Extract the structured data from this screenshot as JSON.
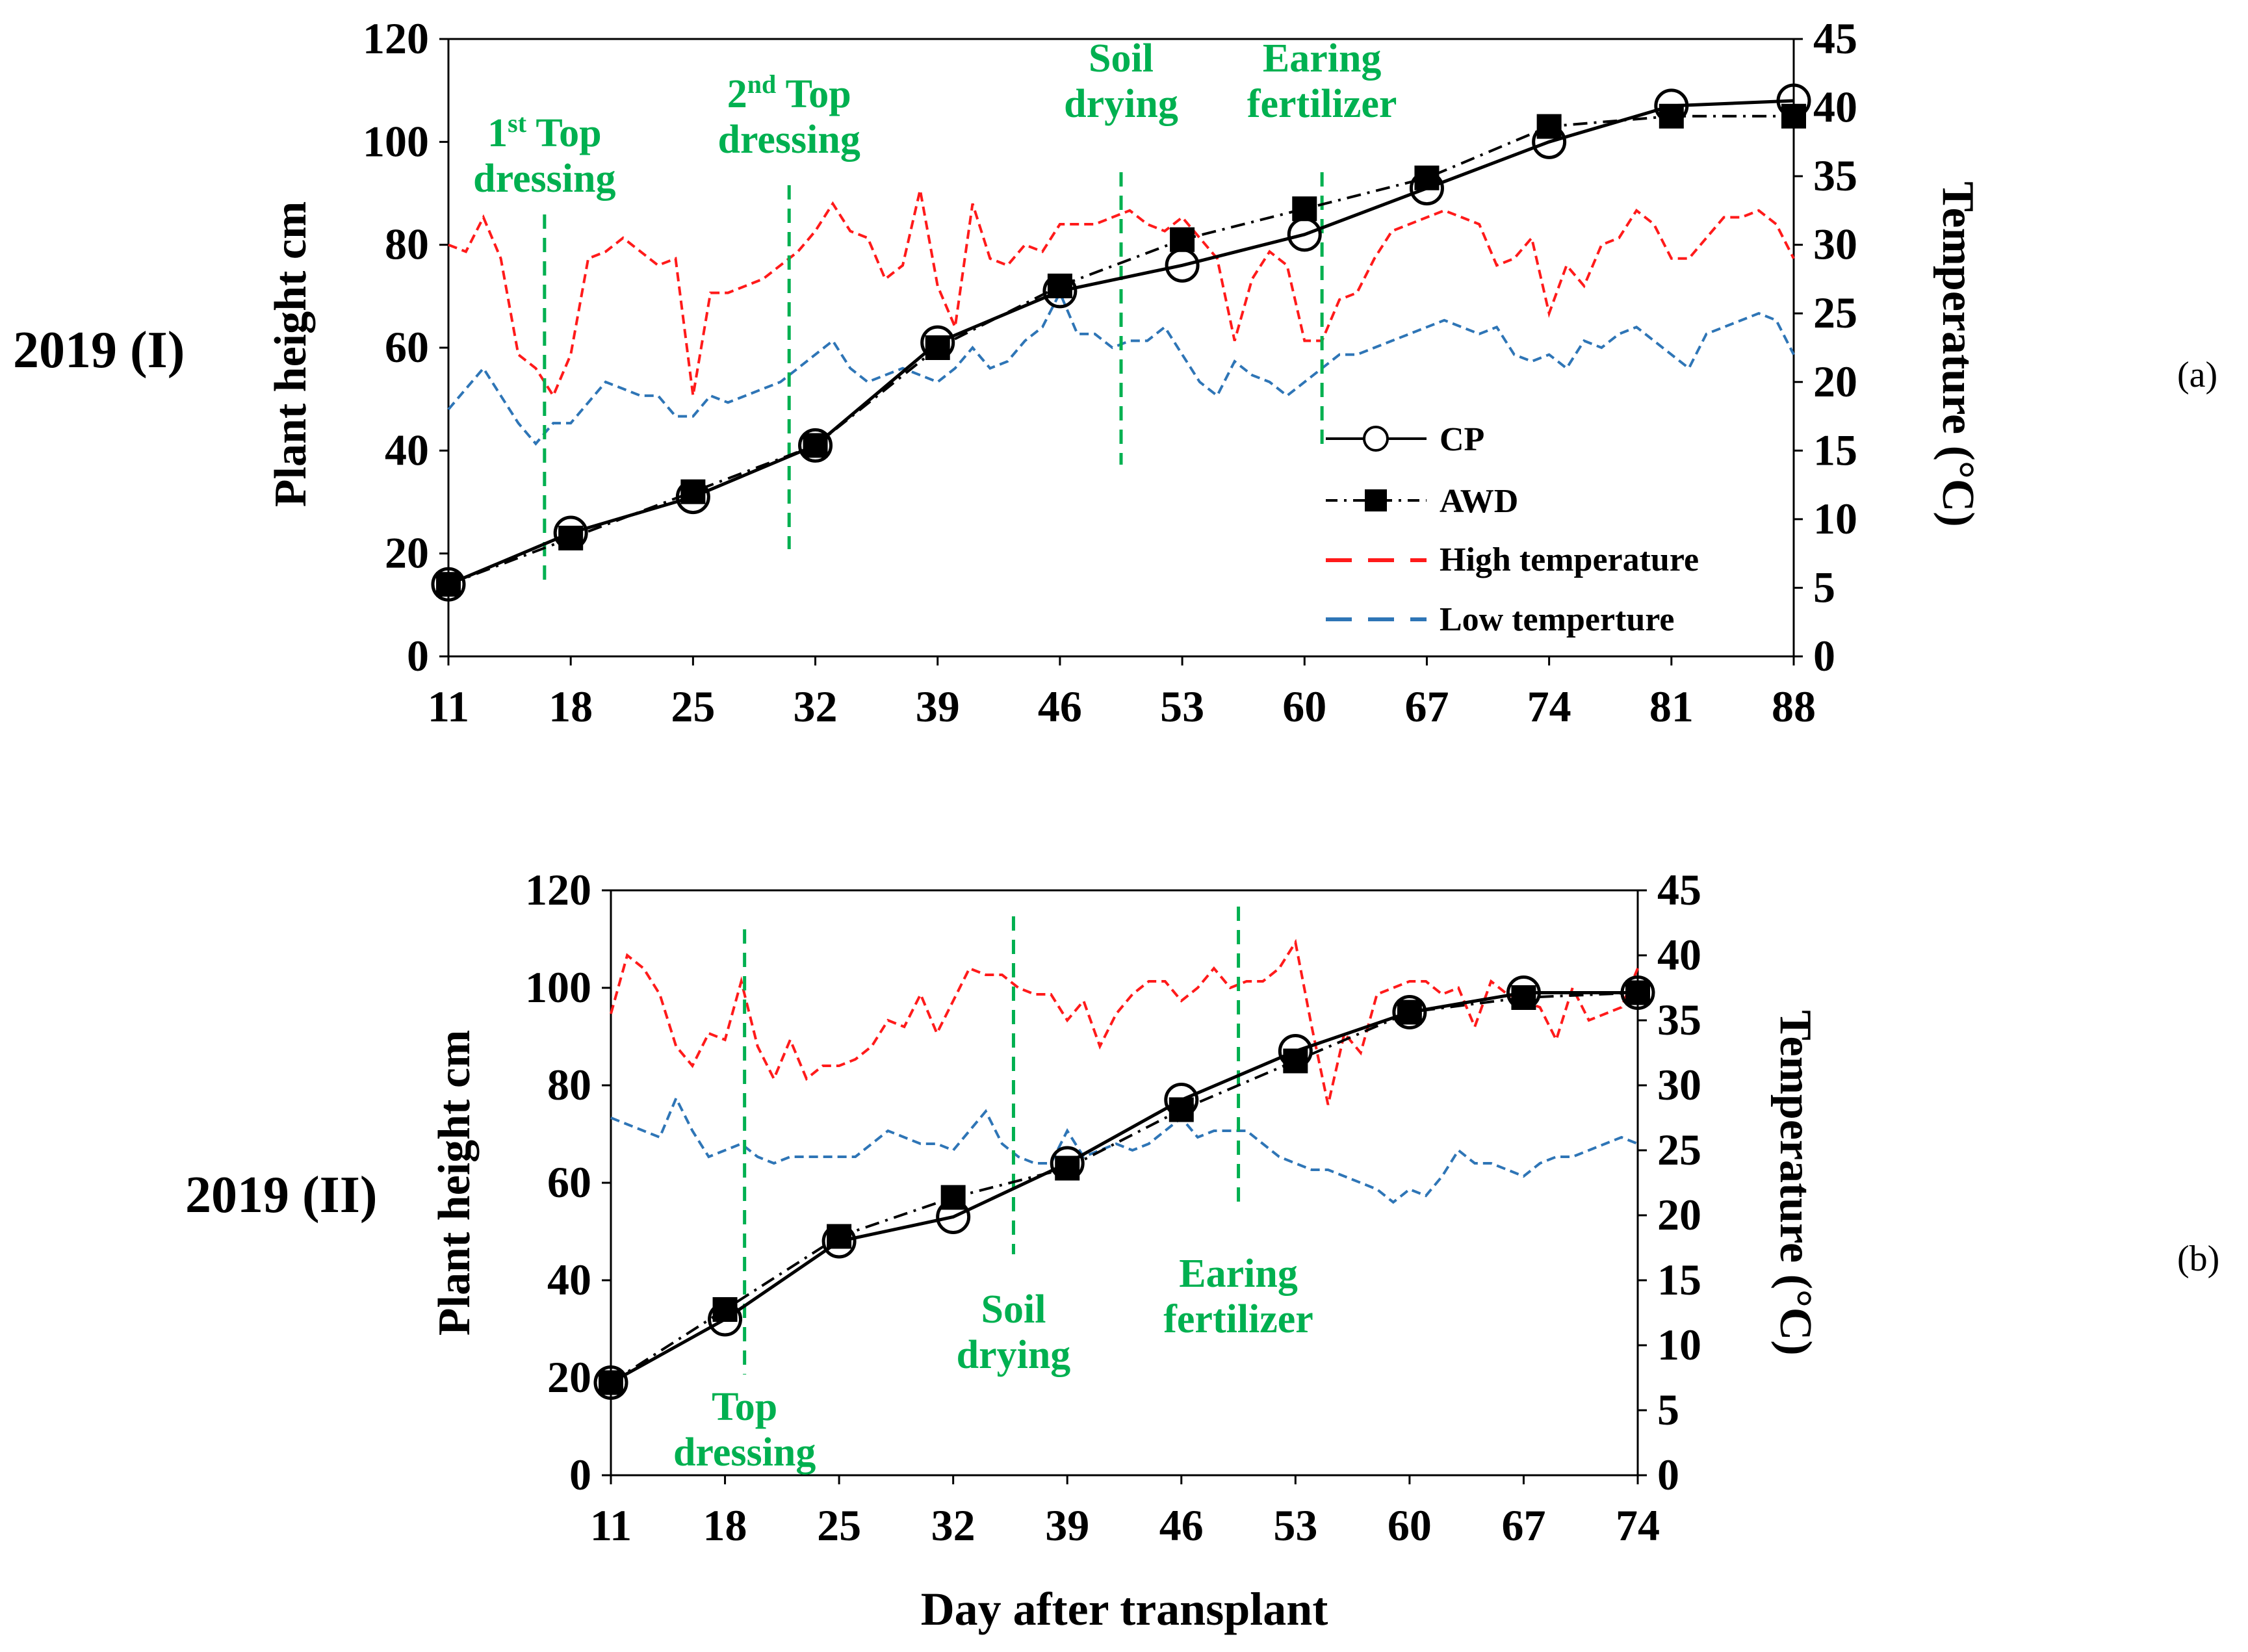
{
  "colors": {
    "high_temp": "#FF1A1A",
    "low_temp": "#2E75B6",
    "annotation": "#00B050",
    "series": "#000000"
  },
  "figure": {
    "x_axis_label": "Day after transplant"
  },
  "chart_data": [
    {
      "type": "line",
      "panel": "(a)",
      "row_label": "2019 (I)",
      "ylabel": "Plant height cm",
      "y2label": "Temperature (°C)",
      "xlim": [
        11,
        88
      ],
      "ylim": [
        0,
        120
      ],
      "y2lim": [
        0,
        45
      ],
      "x_ticks": [
        11,
        18,
        25,
        32,
        39,
        46,
        53,
        60,
        67,
        74,
        81,
        88
      ],
      "y_ticks": [
        0,
        20,
        40,
        60,
        80,
        100,
        120
      ],
      "y2_ticks": [
        0,
        5,
        10,
        15,
        20,
        25,
        30,
        35,
        40,
        45
      ],
      "legend": [
        "CP",
        "AWD",
        "High temperature",
        "Low temperture"
      ],
      "series": [
        {
          "name": "CP",
          "axis": "left",
          "style": "solid-open-circle",
          "x": [
            11,
            18,
            25,
            32,
            39,
            46,
            53,
            60,
            67,
            74,
            81,
            88
          ],
          "values": [
            14,
            24,
            31,
            41,
            61,
            71,
            76,
            82,
            91,
            100,
            107,
            108
          ]
        },
        {
          "name": "AWD",
          "axis": "left",
          "style": "dashdot-filled-square",
          "x": [
            11,
            18,
            25,
            32,
            39,
            46,
            53,
            60,
            67,
            74,
            81,
            88
          ],
          "values": [
            14,
            23,
            32,
            41,
            60,
            72,
            81,
            87,
            93,
            103,
            105,
            105
          ]
        },
        {
          "name": "High temperature",
          "axis": "right",
          "style": "dashed",
          "x": [
            11,
            12,
            13,
            14,
            15,
            16,
            17,
            18,
            19,
            20,
            21,
            22,
            23,
            24,
            25,
            26,
            27,
            28,
            29,
            30,
            31,
            32,
            33,
            34,
            35,
            36,
            37,
            38,
            39,
            40,
            41,
            42,
            43,
            44,
            45,
            46,
            47,
            48,
            49,
            50,
            51,
            52,
            53,
            54,
            55,
            56,
            57,
            58,
            59,
            60,
            61,
            62,
            63,
            64,
            65,
            66,
            67,
            68,
            69,
            70,
            71,
            72,
            73,
            74,
            75,
            76,
            77,
            78,
            79,
            80,
            81,
            82,
            83,
            84,
            85,
            86,
            87,
            88
          ],
          "values": [
            30,
            29.5,
            32,
            29,
            22,
            21,
            19,
            22,
            29,
            29.5,
            30.5,
            29.5,
            28.5,
            29,
            19,
            26.5,
            26.5,
            27,
            27.5,
            28.5,
            29.5,
            31,
            33,
            31,
            30.5,
            27.5,
            28.5,
            34,
            27,
            24,
            33,
            29,
            28.5,
            30,
            29.5,
            31.5,
            31.5,
            31.5,
            32,
            32.5,
            31.5,
            31,
            32,
            30.5,
            29,
            23,
            27.5,
            29.5,
            28.5,
            23,
            23,
            26,
            26.5,
            29,
            31,
            31.5,
            32,
            32.5,
            32,
            31.5,
            28.5,
            29,
            30.5,
            25,
            28.5,
            27,
            30,
            30.5,
            32.5,
            31.5,
            29,
            29,
            30.5,
            32,
            32,
            32.5,
            31.5,
            29
          ]
        },
        {
          "name": "Low temperture",
          "axis": "right",
          "style": "dashed",
          "x": [
            11,
            12,
            13,
            14,
            15,
            16,
            17,
            18,
            19,
            20,
            21,
            22,
            23,
            24,
            25,
            26,
            27,
            28,
            29,
            30,
            31,
            32,
            33,
            34,
            35,
            36,
            37,
            38,
            39,
            40,
            41,
            42,
            43,
            44,
            45,
            46,
            47,
            48,
            49,
            50,
            51,
            52,
            53,
            54,
            55,
            56,
            57,
            58,
            59,
            60,
            61,
            62,
            63,
            64,
            65,
            66,
            67,
            68,
            69,
            70,
            71,
            72,
            73,
            74,
            75,
            76,
            77,
            78,
            79,
            80,
            81,
            82,
            83,
            84,
            85,
            86,
            87,
            88
          ],
          "values": [
            18,
            19.5,
            21,
            19,
            17,
            15.5,
            17,
            17,
            18.5,
            20,
            19.5,
            19,
            19,
            17.5,
            17.5,
            19,
            18.5,
            19,
            19.5,
            20,
            21,
            22,
            23,
            21,
            20,
            20.5,
            21,
            20.5,
            20,
            21,
            22.5,
            21,
            21.5,
            23,
            24,
            26.5,
            23.5,
            23.5,
            22.5,
            23,
            23,
            24,
            22,
            20,
            19,
            21.5,
            20.5,
            20,
            19,
            20,
            21,
            22,
            22,
            22.5,
            23,
            23.5,
            24,
            24.5,
            24,
            23.5,
            24,
            22,
            21.5,
            22,
            21,
            23,
            22.5,
            23.5,
            24,
            23,
            22,
            21,
            23.5,
            24,
            24.5,
            25,
            24.5,
            22
          ]
        }
      ],
      "annotations": [
        {
          "line1": "1",
          "sup": "st",
          "line1b": " Top",
          "line2": "dressing",
          "x": 16.5
        },
        {
          "line1": "2",
          "sup": "nd",
          "line1b": " Top",
          "line2": "dressing",
          "x": 30.5
        },
        {
          "line1": "Soil",
          "sup": "",
          "line1b": "",
          "line2": "drying",
          "x": 49.5
        },
        {
          "line1": "Earing",
          "sup": "",
          "line1b": "",
          "line2": "fertilizer",
          "x": 61
        }
      ]
    },
    {
      "type": "line",
      "panel": "(b)",
      "row_label": "2019 (II)",
      "ylabel": "Plant height cm",
      "y2label": "Temperature (°C)",
      "xlim": [
        11,
        74
      ],
      "ylim": [
        0,
        120
      ],
      "y2lim": [
        0,
        45
      ],
      "x_ticks": [
        11,
        18,
        25,
        32,
        39,
        46,
        53,
        60,
        67,
        74
      ],
      "y_ticks": [
        0,
        20,
        40,
        60,
        80,
        100,
        120
      ],
      "y2_ticks": [
        0,
        5,
        10,
        15,
        20,
        25,
        30,
        35,
        40,
        45
      ],
      "series": [
        {
          "name": "CP",
          "axis": "left",
          "style": "solid-open-circle",
          "x": [
            11,
            18,
            25,
            32,
            39,
            46,
            53,
            60,
            67,
            74
          ],
          "values": [
            19,
            32,
            48,
            53,
            64,
            77,
            87,
            95,
            99,
            99
          ]
        },
        {
          "name": "AWD",
          "axis": "left",
          "style": "dashdot-filled-square",
          "x": [
            11,
            18,
            25,
            32,
            39,
            46,
            53,
            60,
            67,
            74
          ],
          "values": [
            19,
            34,
            49,
            57,
            63,
            75,
            85,
            95,
            98,
            99
          ]
        },
        {
          "name": "High temperature",
          "axis": "right",
          "style": "dashed",
          "x": [
            11,
            12,
            13,
            14,
            15,
            16,
            17,
            18,
            19,
            20,
            21,
            22,
            23,
            24,
            25,
            26,
            27,
            28,
            29,
            30,
            31,
            32,
            33,
            34,
            35,
            36,
            37,
            38,
            39,
            40,
            41,
            42,
            43,
            44,
            45,
            46,
            47,
            48,
            49,
            50,
            51,
            52,
            53,
            54,
            55,
            56,
            57,
            58,
            59,
            60,
            61,
            62,
            63,
            64,
            65,
            66,
            67,
            68,
            69,
            70,
            71,
            72,
            73,
            74
          ],
          "values": [
            35.5,
            40,
            39,
            37,
            33,
            31.5,
            34,
            33.5,
            38,
            33,
            30.5,
            33.5,
            30.5,
            31.5,
            31.5,
            32,
            33,
            35,
            34.5,
            37,
            34,
            36.5,
            39,
            38.5,
            38.5,
            37.5,
            37,
            37,
            35,
            36.5,
            33,
            35.5,
            37,
            38,
            38,
            36.5,
            37.5,
            39,
            37.5,
            38,
            38,
            39,
            41,
            34.5,
            28.5,
            34,
            32.5,
            37,
            37.5,
            38,
            38,
            37,
            37.5,
            34.5,
            38,
            37,
            36.5,
            36,
            33.5,
            37.5,
            35,
            35.5,
            36,
            39
          ]
        },
        {
          "name": "Low temperture",
          "axis": "right",
          "style": "dashed",
          "x": [
            11,
            12,
            13,
            14,
            15,
            16,
            17,
            18,
            19,
            20,
            21,
            22,
            23,
            24,
            25,
            26,
            27,
            28,
            29,
            30,
            31,
            32,
            33,
            34,
            35,
            36,
            37,
            38,
            39,
            40,
            41,
            42,
            43,
            44,
            45,
            46,
            47,
            48,
            49,
            50,
            51,
            52,
            53,
            54,
            55,
            56,
            57,
            58,
            59,
            60,
            61,
            62,
            63,
            64,
            65,
            66,
            67,
            68,
            69,
            70,
            71,
            72,
            73,
            74
          ],
          "values": [
            27.5,
            27,
            26.5,
            26,
            29,
            26.5,
            24.5,
            25,
            25.5,
            24.5,
            24,
            24.5,
            24.5,
            24.5,
            24.5,
            24.5,
            25.5,
            26.5,
            26,
            25.5,
            25.5,
            25,
            26.5,
            28,
            25.5,
            24.5,
            24,
            24,
            26.5,
            24.5,
            25,
            25.5,
            25,
            25.5,
            26.5,
            27.5,
            26,
            26.5,
            26.5,
            26.5,
            25.5,
            24.5,
            24,
            23.5,
            23.5,
            23,
            22.5,
            22,
            21,
            22,
            21.5,
            23,
            25,
            24,
            24,
            23.5,
            23,
            24,
            24.5,
            24.5,
            25,
            25.5,
            26,
            25.5
          ]
        }
      ],
      "annotations": [
        {
          "line1": "Top",
          "sup": "",
          "line1b": "",
          "line2": "dressing",
          "x": 19.2
        },
        {
          "line1": "Soil",
          "sup": "",
          "line1b": "",
          "line2": "drying",
          "x": 35.7
        },
        {
          "line1": "Earing",
          "sup": "",
          "line1b": "",
          "line2": "fertilizer",
          "x": 49.5
        }
      ]
    }
  ]
}
